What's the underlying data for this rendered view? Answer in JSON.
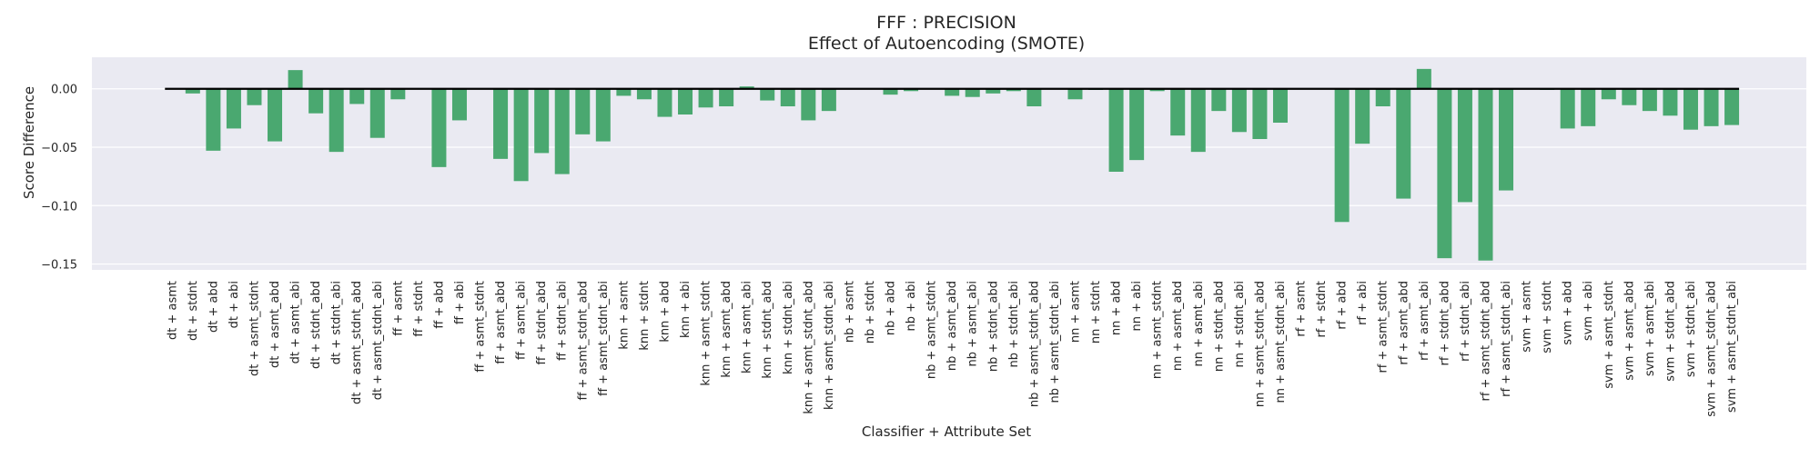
{
  "chart_data": {
    "type": "bar",
    "title": "FFF : PRECISION",
    "subtitle": "Effect of Autoencoding (SMOTE)",
    "xlabel": "Classifier + Attribute Set",
    "ylabel": "Score Difference",
    "ylim": [
      -0.155,
      0.027
    ],
    "yticks": [
      "0.00",
      "−0.05",
      "−0.10",
      "−0.15"
    ],
    "ytick_values": [
      0.0,
      -0.05,
      -0.1,
      -0.15
    ],
    "grid": true,
    "bar_color": "#4aa870",
    "zero_line_color": "#000000",
    "plot_background": "#eaeaf2",
    "categories": [
      "dt + asmt",
      "dt + stdnt",
      "dt + abd",
      "dt + abi",
      "dt + asmt_stdnt",
      "dt + asmt_abd",
      "dt + asmt_abi",
      "dt + stdnt_abd",
      "dt + stdnt_abi",
      "dt + asmt_stdnt_abd",
      "dt + asmt_stdnt_abi",
      "ff + asmt",
      "ff + stdnt",
      "ff + abd",
      "ff + abi",
      "ff + asmt_stdnt",
      "ff + asmt_abd",
      "ff + asmt_abi",
      "ff + stdnt_abd",
      "ff + stdnt_abi",
      "ff + asmt_stdnt_abd",
      "ff + asmt_stdnt_abi",
      "knn + asmt",
      "knn + stdnt",
      "knn + abd",
      "knn + abi",
      "knn + asmt_stdnt",
      "knn + asmt_abd",
      "knn + asmt_abi",
      "knn + stdnt_abd",
      "knn + stdnt_abi",
      "knn + asmt_stdnt_abd",
      "knn + asmt_stdnt_abi",
      "nb + asmt",
      "nb + stdnt",
      "nb + abd",
      "nb + abi",
      "nb + asmt_stdnt",
      "nb + asmt_abd",
      "nb + asmt_abi",
      "nb + stdnt_abd",
      "nb + stdnt_abi",
      "nb + asmt_stdnt_abd",
      "nb + asmt_stdnt_abi",
      "nn + asmt",
      "nn + stdnt",
      "nn + abd",
      "nn + abi",
      "nn + asmt_stdnt",
      "nn + asmt_abd",
      "nn + asmt_abi",
      "nn + stdnt_abd",
      "nn + stdnt_abi",
      "nn + asmt_stdnt_abd",
      "nn + asmt_stdnt_abi",
      "rf + asmt",
      "rf + stdnt",
      "rf + abd",
      "rf + abi",
      "rf + asmt_stdnt",
      "rf + asmt_abd",
      "rf + asmt_abi",
      "rf + stdnt_abd",
      "rf + stdnt_abi",
      "rf + asmt_stdnt_abd",
      "rf + asmt_stdnt_abi",
      "svm + asmt",
      "svm + stdnt",
      "svm + abd",
      "svm + abi",
      "svm + asmt_stdnt",
      "svm + asmt_abd",
      "svm + asmt_abi",
      "svm + stdnt_abd",
      "svm + stdnt_abi",
      "svm + asmt_stdnt_abd",
      "svm + asmt_stdnt_abi"
    ],
    "values": [
      0.0,
      -0.004,
      -0.053,
      -0.034,
      -0.014,
      -0.045,
      0.016,
      -0.021,
      -0.054,
      -0.013,
      -0.042,
      -0.009,
      0.0,
      -0.067,
      -0.027,
      0.0,
      -0.06,
      -0.079,
      -0.055,
      -0.073,
      -0.039,
      -0.045,
      -0.006,
      -0.009,
      -0.024,
      -0.022,
      -0.016,
      -0.015,
      0.002,
      -0.01,
      -0.015,
      -0.027,
      -0.019,
      0.0,
      0.0,
      -0.005,
      -0.002,
      0.0,
      -0.006,
      -0.007,
      -0.004,
      -0.002,
      -0.015,
      0.0,
      -0.009,
      -0.001,
      -0.071,
      -0.061,
      -0.002,
      -0.04,
      -0.054,
      -0.019,
      -0.037,
      -0.043,
      -0.029,
      0.0,
      0.0,
      -0.114,
      -0.047,
      -0.015,
      -0.094,
      0.017,
      -0.145,
      -0.097,
      -0.147,
      -0.087,
      0.0,
      -0.001,
      -0.034,
      -0.032,
      -0.009,
      -0.014,
      -0.019,
      -0.023,
      -0.035,
      -0.032,
      -0.031
    ]
  }
}
